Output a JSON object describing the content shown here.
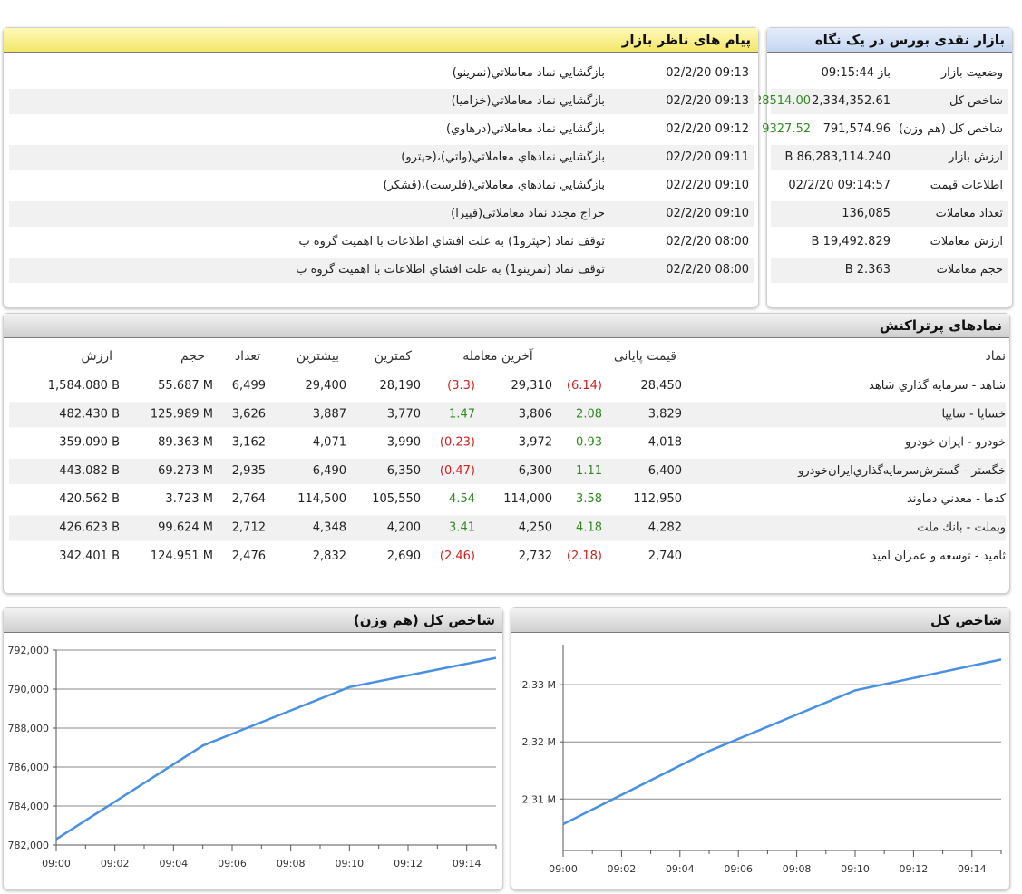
{
  "market_overview": {
    "title": "بازار نقدی بورس در یک نگاه",
    "rows": [
      {
        "label": "وضعیت بازار",
        "value": "باز 09:15:44",
        "change": ""
      },
      {
        "label": "شاخص کل",
        "value": "2,334,352.61",
        "change": "28514.00"
      },
      {
        "label": "شاخص کل (هم وزن)",
        "value": "791,574.96",
        "change": "9327.52"
      },
      {
        "label": "ارزش بازار",
        "value": "86,283,114.240 B",
        "change": ""
      },
      {
        "label": "اطلاعات قیمت",
        "value": "09:14:57 02/2/20",
        "change": ""
      },
      {
        "label": "تعداد معاملات",
        "value": "136,085",
        "change": ""
      },
      {
        "label": "ارزش معاملات",
        "value": "19,492.829 B",
        "change": ""
      },
      {
        "label": "حجم معاملات",
        "value": "2.363 B",
        "change": ""
      }
    ]
  },
  "supervisor_messages": {
    "title": "پیام های ناظر بازار",
    "items": [
      {
        "time": "02/2/20 09:13",
        "text": "بازگشايي نماد معاملاتي(نمرينو)"
      },
      {
        "time": "02/2/20 09:13",
        "text": "بازگشايي نماد معاملاتي(خزاميا)"
      },
      {
        "time": "02/2/20 09:12",
        "text": "بازگشايي نماد معاملاتي(درهاوي)"
      },
      {
        "time": "02/2/20 09:11",
        "text": "بازگشايي نمادهاي معاملاتي(واتي)،(حپترو)"
      },
      {
        "time": "02/2/20 09:10",
        "text": "بازگشايي نمادهاي معاملاتي(فلرست)،(قشكر)"
      },
      {
        "time": "02/2/20 09:10",
        "text": "حراج مجدد نماد معاملاتي(قپيرا)"
      },
      {
        "time": "02/2/20 08:00",
        "text": "توقف نماد (حپترو1) به علت افشاي اطلاعات با اهميت گروه ب"
      },
      {
        "time": "02/2/20 08:00",
        "text": "توقف نماد (نمرينو1) به علت افشاي اطلاعات با اهميت گروه ب"
      }
    ]
  },
  "top_symbols": {
    "title": "نمادهای پرتراکنش",
    "headers": {
      "symbol": "نماد",
      "final_price": "قیمت پایانی",
      "last_trade": "آخرین معامله",
      "min": "کمترین",
      "max": "بیشترین",
      "count": "تعداد",
      "volume": "حجم",
      "value": "ارزش"
    },
    "rows": [
      {
        "symbol": "شاهد - سرمايه گذاري شاهد",
        "final": "28,450",
        "final_chg": "(6.14)",
        "final_dir": "down",
        "last": "29,310",
        "last_chg": "(3.3)",
        "last_dir": "down",
        "min": "28,190",
        "max": "29,400",
        "count": "6,499",
        "volume": "55.687 M",
        "value": "1,584.080 B"
      },
      {
        "symbol": "خسايا - سايپا",
        "final": "3,829",
        "final_chg": "2.08",
        "final_dir": "up",
        "last": "3,806",
        "last_chg": "1.47",
        "last_dir": "up",
        "min": "3,770",
        "max": "3,887",
        "count": "3,626",
        "volume": "125.989 M",
        "value": "482.430 B"
      },
      {
        "symbol": "خودرو - ايران خودرو",
        "final": "4,018",
        "final_chg": "0.93",
        "final_dir": "up",
        "last": "3,972",
        "last_chg": "(0.23)",
        "last_dir": "down",
        "min": "3,990",
        "max": "4,071",
        "count": "3,162",
        "volume": "89.363 M",
        "value": "359.090 B"
      },
      {
        "symbol": "خگستر - گسترش‌سرمايه‌گذاري‌ايران‌خودرو",
        "final": "6,400",
        "final_chg": "1.11",
        "final_dir": "up",
        "last": "6,300",
        "last_chg": "(0.47)",
        "last_dir": "down",
        "min": "6,350",
        "max": "6,490",
        "count": "2,935",
        "volume": "69.273 M",
        "value": "443.082 B"
      },
      {
        "symbol": "كدما - معدني دماوند",
        "final": "112,950",
        "final_chg": "3.58",
        "final_dir": "up",
        "last": "114,000",
        "last_chg": "4.54",
        "last_dir": "up",
        "min": "105,550",
        "max": "114,500",
        "count": "2,764",
        "volume": "3.723 M",
        "value": "420.562 B"
      },
      {
        "symbol": "وبملت - بانك ملت",
        "final": "4,282",
        "final_chg": "4.18",
        "final_dir": "up",
        "last": "4,250",
        "last_chg": "3.41",
        "last_dir": "up",
        "min": "4,200",
        "max": "4,348",
        "count": "2,712",
        "volume": "99.624 M",
        "value": "426.623 B"
      },
      {
        "symbol": "ثاميد - توسعه و عمران اميد",
        "final": "2,740",
        "final_chg": "(2.18)",
        "final_dir": "down",
        "last": "2,732",
        "last_chg": "(2.46)",
        "last_dir": "down",
        "min": "2,690",
        "max": "2,832",
        "count": "2,476",
        "volume": "124.951 M",
        "value": "342.401 B"
      }
    ]
  },
  "colors": {
    "line": "#4a90e2",
    "up": "#2e8b1e",
    "down": "#d11f1f"
  },
  "chart_data": [
    {
      "type": "line",
      "title": "شاخص کل (هم وزن)",
      "x": [
        "09:00",
        "09:05",
        "09:10",
        "09:15"
      ],
      "y": [
        782300,
        787100,
        790100,
        791600
      ],
      "xticks": [
        "09:00",
        "09:02",
        "09:04",
        "09:06",
        "09:08",
        "09:10",
        "09:12",
        "09:14"
      ],
      "yticks": [
        "782,000",
        "784,000",
        "786,000",
        "788,000",
        "790,000",
        "792,000"
      ],
      "ylim": [
        782000,
        792000
      ],
      "xlim": [
        "09:00",
        "09:15"
      ],
      "grid": true
    },
    {
      "type": "line",
      "title": "شاخص کل",
      "x": [
        "09:00",
        "09:05",
        "09:10",
        "09:15"
      ],
      "y": [
        2305600,
        2318400,
        2329000,
        2334400
      ],
      "xticks": [
        "09:00",
        "09:02",
        "09:04",
        "09:06",
        "09:08",
        "09:10",
        "09:12",
        "09:14"
      ],
      "yticks": [
        "2.31 M",
        "2.32 M",
        "2.33 M"
      ],
      "ytick_values": [
        2310000,
        2320000,
        2330000
      ],
      "ylim": [
        2301000,
        2337000
      ],
      "xlim": [
        "09:00",
        "09:15"
      ],
      "grid": true
    }
  ]
}
